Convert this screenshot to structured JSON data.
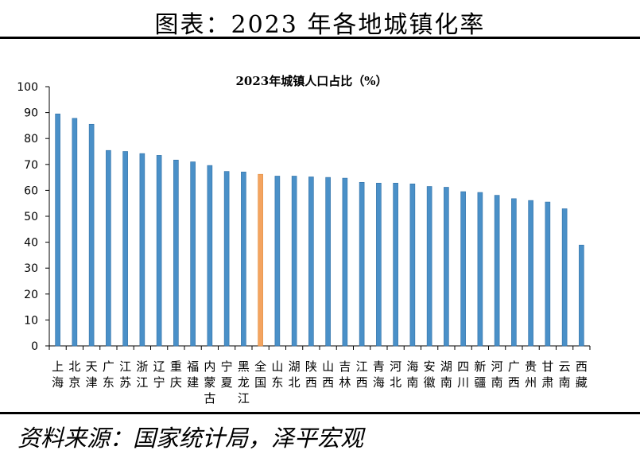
{
  "figure_title": "图表：2023 年各地城镇化率",
  "source": "资料来源：国家统计局，泽平宏观",
  "colors": {
    "bar": "#4a90c8",
    "bar_highlight": "#f4a460",
    "axis": "#000000"
  },
  "chart_data": {
    "type": "bar",
    "title": "2023年城镇人口占比（%）",
    "ylim": [
      0,
      100
    ],
    "yticks": [
      0,
      10,
      20,
      30,
      40,
      50,
      60,
      70,
      80,
      90,
      100
    ],
    "grid": false,
    "categories": [
      "上海",
      "北京",
      "天津",
      "广东",
      "江苏",
      "浙江",
      "辽宁",
      "重庆",
      "福建",
      "内蒙古",
      "宁夏",
      "黑龙江",
      "全国",
      "山东",
      "湖北",
      "陕西",
      "山西",
      "吉林",
      "江西",
      "青海",
      "河北",
      "海南",
      "安徽",
      "湖南",
      "四川",
      "新疆",
      "河南",
      "广西",
      "贵州",
      "甘肃",
      "云南",
      "西藏"
    ],
    "values": [
      89.5,
      87.8,
      85.5,
      75.4,
      75.0,
      74.2,
      73.5,
      71.7,
      71.0,
      69.6,
      67.3,
      67.1,
      66.2,
      65.5,
      65.5,
      65.2,
      65.0,
      64.7,
      63.1,
      62.8,
      62.8,
      62.5,
      61.5,
      61.2,
      59.5,
      59.2,
      58.1,
      56.8,
      56.1,
      55.5,
      52.9,
      38.9
    ],
    "highlight_category": "全国"
  }
}
